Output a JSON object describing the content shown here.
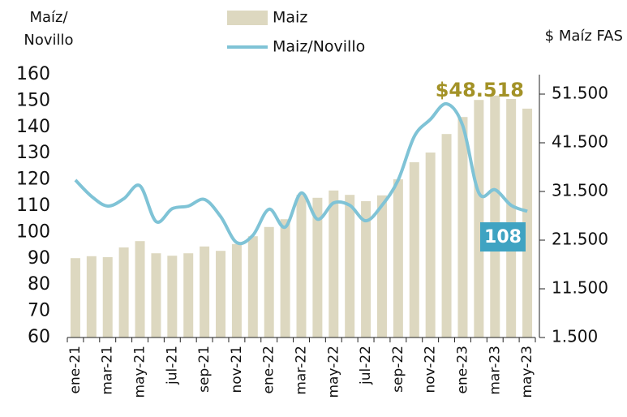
{
  "chart_data": {
    "type": "bar_line",
    "y_label": [
      "Maíz/",
      "Novillo"
    ],
    "y2_label": "$ Maíz FAS",
    "legend": "top",
    "categories": [
      "ene-21",
      null,
      "mar-21",
      null,
      "may-21",
      null,
      "jul-21",
      null,
      "sep-21",
      null,
      "nov-21",
      null,
      "ene-22",
      null,
      "mar-22",
      null,
      "may-22",
      null,
      "jul-22",
      null,
      "sep-22",
      null,
      "nov-22",
      null,
      "ene-23",
      null,
      "mar-23",
      null,
      "may-23"
    ],
    "series": [
      {
        "name": "Maiz",
        "type": "bar",
        "axis": "y2",
        "color": "#ddd8c0",
        "values": [
          17800,
          18200,
          18000,
          20000,
          21300,
          18800,
          18300,
          18800,
          20200,
          19300,
          20700,
          22300,
          24200,
          25800,
          30800,
          30200,
          31700,
          30800,
          29500,
          30700,
          34000,
          37500,
          39500,
          43300,
          46800,
          50300,
          51200,
          50500,
          48518
        ],
        "value_labels": [
          null,
          null,
          null,
          null,
          null,
          null,
          null,
          null,
          null,
          null,
          null,
          null,
          null,
          null,
          null,
          null,
          null,
          null,
          null,
          null,
          null,
          null,
          null,
          null,
          null,
          null,
          null,
          null,
          "$48.518"
        ],
        "label_color": "#a39227"
      },
      {
        "name": "Maiz/Novillo",
        "type": "line",
        "axis": "y",
        "color": "#7fc3d6",
        "values": [
          119.9,
          113.7,
          110,
          112.8,
          117.7,
          104.1,
          109,
          110,
          112.5,
          106,
          96.1,
          98.9,
          108.8,
          102,
          115,
          105,
          111.2,
          110.3,
          104.4,
          110.3,
          119.9,
          136.5,
          143,
          148.9,
          140.6,
          115,
          116.2,
          110.3,
          108
        ],
        "value_labels": [
          null,
          null,
          null,
          null,
          null,
          null,
          null,
          null,
          null,
          null,
          null,
          null,
          null,
          null,
          null,
          null,
          null,
          null,
          null,
          null,
          null,
          null,
          null,
          null,
          null,
          null,
          null,
          null,
          "108"
        ],
        "label_color": "#3fa3c2"
      }
    ],
    "ylim": [
      60,
      160
    ],
    "yticks": [
      60,
      70,
      80,
      90,
      100,
      110,
      120,
      130,
      140,
      150,
      160
    ],
    "y2lim": [
      1500,
      55500
    ],
    "y2ticks": [
      {
        "value": 1500,
        "label": "1.500"
      },
      {
        "value": 11500,
        "label": "11.500"
      },
      {
        "value": 21500,
        "label": "21.500"
      },
      {
        "value": 31500,
        "label": "31.500"
      },
      {
        "value": 41500,
        "label": "41.500"
      },
      {
        "value": 51500,
        "label": "51.500"
      }
    ]
  }
}
